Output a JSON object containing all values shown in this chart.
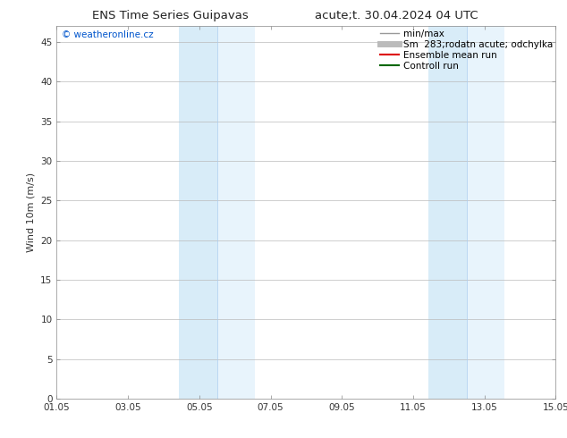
{
  "title_left": "ENS Time Series Guipavas",
  "title_right": "acute;t. 30.04.2024 04 UTC",
  "ylabel": "Wind 10m (m/s)",
  "watermark": "© weatheronline.cz",
  "watermark_color": "#0055cc",
  "xlim_start": 0,
  "xlim_end": 14,
  "ylim_min": 0,
  "ylim_max": 47,
  "yticks": [
    0,
    5,
    10,
    15,
    20,
    25,
    30,
    35,
    40,
    45
  ],
  "xtick_labels": [
    "01.05",
    "03.05",
    "05.05",
    "07.05",
    "09.05",
    "11.05",
    "13.05",
    "15.05"
  ],
  "xtick_positions": [
    0,
    2,
    4,
    6,
    8,
    10,
    12,
    14
  ],
  "shaded_bands": [
    {
      "x_start": 3.43,
      "x_end": 4.5,
      "color": "#d8ecf8"
    },
    {
      "x_start": 4.5,
      "x_end": 5.57,
      "color": "#e8f4fc"
    },
    {
      "x_start": 10.43,
      "x_end": 11.5,
      "color": "#d8ecf8"
    },
    {
      "x_start": 11.5,
      "x_end": 12.57,
      "color": "#e8f4fc"
    }
  ],
  "bg_color": "#ffffff",
  "grid_color": "#bbbbbb",
  "legend_entries": [
    {
      "label": "min/max",
      "color": "#999999",
      "lw": 1.0
    },
    {
      "label": "Sm  283;rodatn acute; odchylka",
      "color": "#bbbbbb",
      "lw": 5
    },
    {
      "label": "Ensemble mean run",
      "color": "#dd0000",
      "lw": 1.5
    },
    {
      "label": "Controll run",
      "color": "#006600",
      "lw": 1.5
    }
  ],
  "font_size_title": 9.5,
  "font_size_axis": 8,
  "font_size_tick": 7.5,
  "font_size_legend": 7.5,
  "font_size_watermark": 7.5
}
